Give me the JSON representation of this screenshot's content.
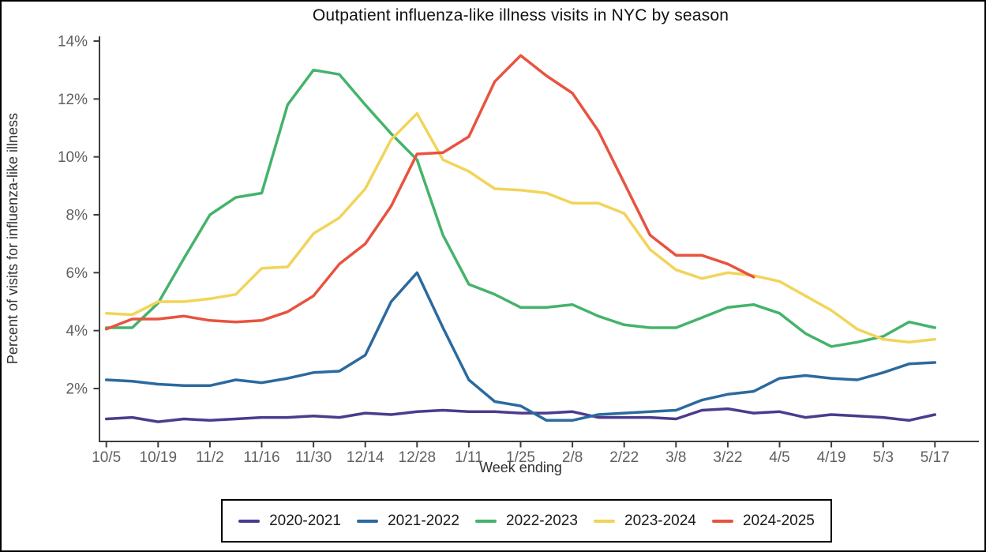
{
  "figure": {
    "title": "Outpatient influenza-like illness visits in NYC by season",
    "x_axis": {
      "label": "Week ending"
    },
    "y_axis": {
      "label": "Percent of visits for influenza-like illness"
    }
  },
  "chart_data": {
    "type": "line",
    "title": "Outpatient influenza-like illness visits in NYC by season",
    "xlabel": "Week ending",
    "ylabel": "Percent of visits for influenza-like illness",
    "grid": "off",
    "legend_position": "bottom",
    "ylim": [
      0.2,
      14.2
    ],
    "y_ticks": [
      {
        "value": 2,
        "label": "2%"
      },
      {
        "value": 4,
        "label": "4%"
      },
      {
        "value": 6,
        "label": "6%"
      },
      {
        "value": 8,
        "label": "8%"
      },
      {
        "value": 10,
        "label": "10%"
      },
      {
        "value": 12,
        "label": "12%"
      },
      {
        "value": 14,
        "label": "14%"
      }
    ],
    "x_ticks": [
      {
        "week": 0,
        "label": "10/5"
      },
      {
        "week": 2,
        "label": "10/19"
      },
      {
        "week": 4,
        "label": "11/2"
      },
      {
        "week": 6,
        "label": "11/16"
      },
      {
        "week": 8,
        "label": "11/30"
      },
      {
        "week": 10,
        "label": "12/14"
      },
      {
        "week": 12,
        "label": "12/28"
      },
      {
        "week": 14,
        "label": "1/11"
      },
      {
        "week": 16,
        "label": "1/25"
      },
      {
        "week": 18,
        "label": "2/8"
      },
      {
        "week": 20,
        "label": "2/22"
      },
      {
        "week": 22,
        "label": "3/8"
      },
      {
        "week": 24,
        "label": "3/22"
      },
      {
        "week": 26,
        "label": "4/5"
      },
      {
        "week": 28,
        "label": "4/19"
      },
      {
        "week": 30,
        "label": "5/3"
      },
      {
        "week": 32,
        "label": "5/17"
      }
    ],
    "series": [
      {
        "name": "2020-2021",
        "color": "#4c3b8c",
        "values": [
          0.95,
          1.0,
          0.85,
          0.95,
          0.9,
          0.95,
          1.0,
          1.0,
          1.05,
          1.0,
          1.15,
          1.1,
          1.2,
          1.25,
          1.2,
          1.2,
          1.15,
          1.15,
          1.2,
          1.0,
          1.0,
          1.0,
          0.95,
          1.25,
          1.3,
          1.15,
          1.2,
          1.0,
          1.1,
          1.05,
          1.0,
          0.9,
          1.1
        ]
      },
      {
        "name": "2021-2022",
        "color": "#2b6a9f",
        "values": [
          2.3,
          2.25,
          2.15,
          2.1,
          2.1,
          2.3,
          2.2,
          2.35,
          2.55,
          2.6,
          3.15,
          5.0,
          6.0,
          4.1,
          2.3,
          1.55,
          1.4,
          0.9,
          0.9,
          1.1,
          1.15,
          1.2,
          1.25,
          1.6,
          1.8,
          1.9,
          2.35,
          2.45,
          2.35,
          2.3,
          2.55,
          2.85,
          2.9
        ]
      },
      {
        "name": "2022-2023",
        "color": "#45b36b",
        "values": [
          4.1,
          4.1,
          4.95,
          6.5,
          8.0,
          8.6,
          8.75,
          11.8,
          13.0,
          12.85,
          11.8,
          10.8,
          9.9,
          7.3,
          5.6,
          5.25,
          4.8,
          4.8,
          4.9,
          4.5,
          4.2,
          4.1,
          4.1,
          4.45,
          4.8,
          4.9,
          4.6,
          3.9,
          3.45,
          3.6,
          3.8,
          4.3,
          4.1
        ]
      },
      {
        "name": "2023-2024",
        "color": "#f1d45a",
        "values": [
          4.6,
          4.55,
          5.0,
          5.0,
          5.1,
          5.25,
          6.15,
          6.2,
          7.35,
          7.9,
          8.9,
          10.6,
          11.5,
          9.9,
          9.5,
          8.9,
          8.85,
          8.75,
          8.4,
          8.4,
          8.05,
          6.8,
          6.1,
          5.8,
          6.0,
          5.9,
          5.7,
          5.2,
          4.7,
          4.05,
          3.7,
          3.6,
          3.7
        ]
      },
      {
        "name": "2024-2025",
        "color": "#e8533f",
        "values": [
          4.05,
          4.4,
          4.4,
          4.5,
          4.35,
          4.3,
          4.35,
          4.65,
          5.2,
          6.3,
          7.0,
          8.3,
          10.1,
          10.15,
          10.7,
          12.6,
          13.5,
          12.8,
          12.2,
          10.9,
          9.1,
          7.3,
          6.6,
          6.6,
          6.3,
          5.85
        ]
      }
    ]
  }
}
